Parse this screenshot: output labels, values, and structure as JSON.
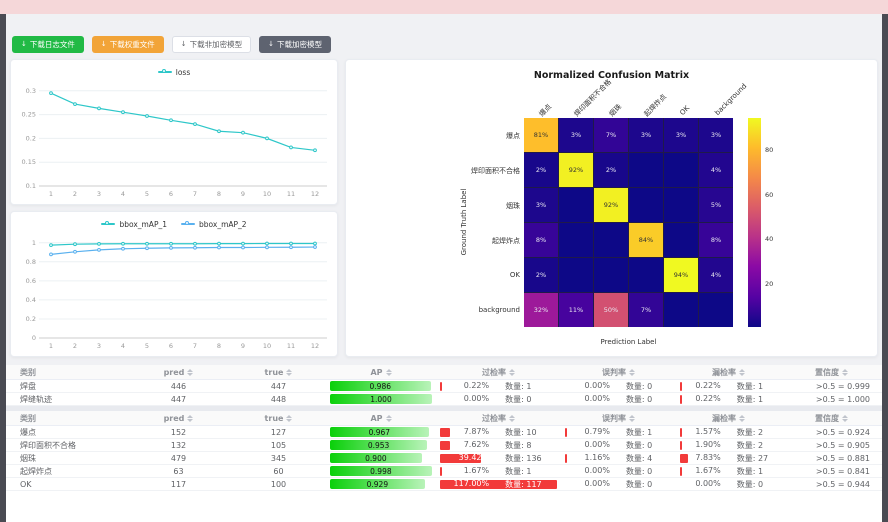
{
  "toolbar": {
    "buttons": [
      {
        "label": "下载日志文件",
        "variant": "green"
      },
      {
        "label": "下载权重文件",
        "variant": "orange"
      },
      {
        "label": "下载非加密模型",
        "variant": "plain"
      },
      {
        "label": "下载加密模型",
        "variant": "dark"
      }
    ]
  },
  "chart_data": [
    {
      "type": "line",
      "title": "loss",
      "legend": [
        {
          "name": "loss",
          "color": "#2ec7c9"
        }
      ],
      "x": [
        1,
        2,
        3,
        4,
        5,
        6,
        7,
        8,
        9,
        10,
        11,
        12
      ],
      "series": [
        {
          "name": "loss",
          "color": "#2ec7c9",
          "values": [
            0.295,
            0.272,
            0.263,
            0.255,
            0.247,
            0.238,
            0.23,
            0.215,
            0.212,
            0.2,
            0.181,
            0.175
          ]
        }
      ],
      "ylim": [
        0.1,
        0.31
      ],
      "yticks": [
        0.1,
        0.15,
        0.2,
        0.25,
        0.3
      ],
      "grid": true,
      "legend_position": "top"
    },
    {
      "type": "line",
      "title": "bbox_mAP",
      "legend": [
        {
          "name": "bbox_mAP_1",
          "color": "#2ec7c9"
        },
        {
          "name": "bbox_mAP_2",
          "color": "#5ab1ef"
        }
      ],
      "x": [
        1,
        2,
        3,
        4,
        5,
        6,
        7,
        8,
        9,
        10,
        11,
        12
      ],
      "series": [
        {
          "name": "bbox_mAP_1",
          "color": "#2ec7c9",
          "values": [
            0.975,
            0.985,
            0.988,
            0.99,
            0.99,
            0.99,
            0.99,
            0.991,
            0.991,
            0.992,
            0.992,
            0.992
          ]
        },
        {
          "name": "bbox_mAP_2",
          "color": "#5ab1ef",
          "values": [
            0.878,
            0.905,
            0.925,
            0.937,
            0.942,
            0.946,
            0.948,
            0.95,
            0.95,
            0.952,
            0.953,
            0.955
          ]
        }
      ],
      "ylim": [
        0,
        1.05
      ],
      "yticks": [
        0,
        0.2,
        0.4,
        0.6,
        0.8,
        1
      ],
      "grid": true,
      "legend_position": "top"
    },
    {
      "type": "heatmap",
      "title": "Normalized Confusion Matrix",
      "xlabel": "Prediction Label",
      "ylabel": "Ground Truth Label",
      "classes": [
        "爆点",
        "焊印面积不合格",
        "烟珠",
        "起焊炸点",
        "OK",
        "background"
      ],
      "matrix": [
        [
          81,
          3,
          7,
          3,
          3,
          3
        ],
        [
          2,
          92,
          2,
          0,
          0,
          4
        ],
        [
          3,
          0,
          92,
          0,
          0,
          5
        ],
        [
          8,
          0,
          0,
          84,
          0,
          8
        ],
        [
          2,
          0,
          0,
          0,
          94,
          4
        ],
        [
          32,
          11,
          50,
          7,
          0,
          0
        ]
      ],
      "vmax": 94,
      "colorbar_ticks": [
        20,
        40,
        60,
        80
      ],
      "colormap": "plasma"
    }
  ],
  "tables": [
    {
      "headers": [
        "类别",
        "pred",
        "true",
        "AP",
        "过检率",
        "误判率",
        "漏检率",
        "置信度"
      ],
      "rows": [
        {
          "name": "焊盘",
          "pred": "446",
          "true": "447",
          "ap": "0.986",
          "over": "0.22%",
          "over_n": "数量: 1",
          "mis": "0.00%",
          "mis_n": "数量: 0",
          "miss": "0.22%",
          "miss_n": "数量: 1",
          "conf": ">0.5 = 0.999"
        },
        {
          "name": "焊缝轨迹",
          "pred": "447",
          "true": "448",
          "ap": "1.000",
          "over": "0.00%",
          "over_n": "数量: 0",
          "mis": "0.00%",
          "mis_n": "数量: 0",
          "miss": "0.22%",
          "miss_n": "数量: 1",
          "conf": ">0.5 = 1.000"
        }
      ]
    },
    {
      "headers": [
        "类别",
        "pred",
        "true",
        "AP",
        "过检率",
        "误判率",
        "漏检率",
        "置信度"
      ],
      "rows": [
        {
          "name": "爆点",
          "pred": "152",
          "true": "127",
          "ap": "0.967",
          "over": "7.87%",
          "over_n": "数量: 10",
          "mis": "0.79%",
          "mis_n": "数量: 1",
          "miss": "1.57%",
          "miss_n": "数量: 2",
          "conf": ">0.5 = 0.924"
        },
        {
          "name": "焊印面积不合格",
          "pred": "132",
          "true": "105",
          "ap": "0.953",
          "over": "7.62%",
          "over_n": "数量: 8",
          "mis": "0.00%",
          "mis_n": "数量: 0",
          "miss": "1.90%",
          "miss_n": "数量: 2",
          "conf": ">0.5 = 0.905"
        },
        {
          "name": "烟珠",
          "pred": "479",
          "true": "345",
          "ap": "0.900",
          "over": "39.42%",
          "over_n": "数量: 136",
          "mis": "1.16%",
          "mis_n": "数量: 4",
          "miss": "7.83%",
          "miss_n": "数量: 27",
          "conf": ">0.5 = 0.881"
        },
        {
          "name": "起焊炸点",
          "pred": "63",
          "true": "60",
          "ap": "0.998",
          "over": "1.67%",
          "over_n": "数量: 1",
          "mis": "0.00%",
          "mis_n": "数量: 0",
          "miss": "1.67%",
          "miss_n": "数量: 1",
          "conf": ">0.5 = 0.841"
        },
        {
          "name": "OK",
          "pred": "117",
          "true": "100",
          "ap": "0.929",
          "over": "117.00%",
          "over_n": "数量: 117",
          "mis": "0.00%",
          "mis_n": "数量: 0",
          "miss": "0.00%",
          "miss_n": "数量: 0",
          "conf": ">0.5 = 0.944"
        }
      ]
    }
  ]
}
